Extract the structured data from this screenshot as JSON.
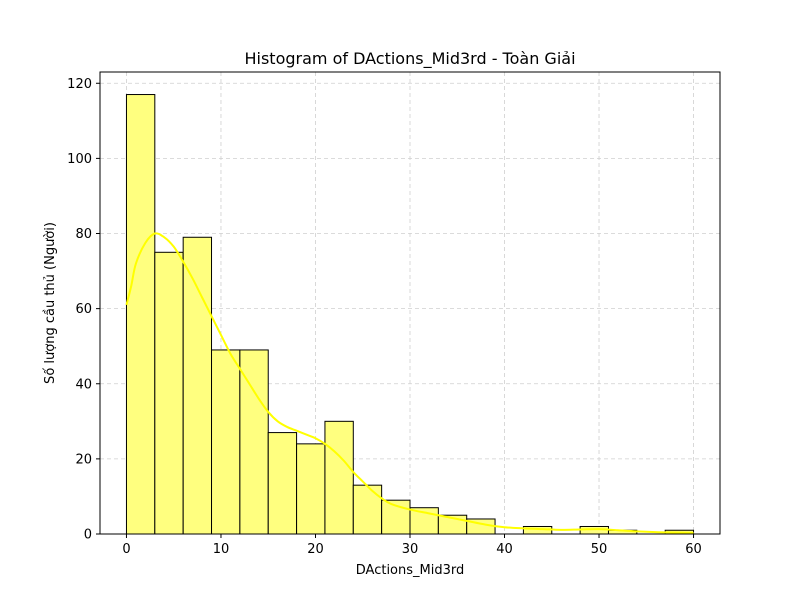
{
  "chart_data": {
    "type": "bar",
    "subtype": "histogram",
    "title": "Histogram of DActions_Mid3rd - Toàn Giải",
    "xlabel": "DActions_Mid3rd",
    "ylabel": "Số lượng cầu thủ (Người)",
    "xlim": [
      -2.8,
      62.8
    ],
    "ylim": [
      0,
      123
    ],
    "xticks": [
      0,
      10,
      20,
      30,
      40,
      50,
      60
    ],
    "yticks": [
      0,
      20,
      40,
      60,
      80,
      100,
      120
    ],
    "grid": true,
    "bar_color": "#ffff7f",
    "edge_color": "#000000",
    "kde_color": "#ffff00",
    "bins": [
      {
        "x0": 0,
        "x1": 3,
        "count": 117
      },
      {
        "x0": 3,
        "x1": 6,
        "count": 75
      },
      {
        "x0": 6,
        "x1": 9,
        "count": 79
      },
      {
        "x0": 9,
        "x1": 12,
        "count": 49
      },
      {
        "x0": 12,
        "x1": 15,
        "count": 49
      },
      {
        "x0": 15,
        "x1": 18,
        "count": 27
      },
      {
        "x0": 18,
        "x1": 21,
        "count": 24
      },
      {
        "x0": 21,
        "x1": 24,
        "count": 30
      },
      {
        "x0": 24,
        "x1": 27,
        "count": 13
      },
      {
        "x0": 27,
        "x1": 30,
        "count": 9
      },
      {
        "x0": 30,
        "x1": 33,
        "count": 7
      },
      {
        "x0": 33,
        "x1": 36,
        "count": 5
      },
      {
        "x0": 36,
        "x1": 39,
        "count": 4
      },
      {
        "x0": 39,
        "x1": 42,
        "count": 0
      },
      {
        "x0": 42,
        "x1": 45,
        "count": 2
      },
      {
        "x0": 45,
        "x1": 48,
        "count": 0
      },
      {
        "x0": 48,
        "x1": 51,
        "count": 2
      },
      {
        "x0": 51,
        "x1": 54,
        "count": 1
      },
      {
        "x0": 54,
        "x1": 57,
        "count": 0
      },
      {
        "x0": 57,
        "x1": 60,
        "count": 1
      }
    ],
    "kde": [
      {
        "x": 0,
        "y": 61
      },
      {
        "x": 0.5,
        "y": 66
      },
      {
        "x": 1,
        "y": 72
      },
      {
        "x": 2,
        "y": 77.5
      },
      {
        "x": 3,
        "y": 80
      },
      {
        "x": 4,
        "y": 79
      },
      {
        "x": 5,
        "y": 76.5
      },
      {
        "x": 6,
        "y": 72.5
      },
      {
        "x": 7,
        "y": 68
      },
      {
        "x": 8,
        "y": 63
      },
      {
        "x": 9,
        "y": 58
      },
      {
        "x": 10,
        "y": 53
      },
      {
        "x": 11,
        "y": 48
      },
      {
        "x": 12,
        "y": 44
      },
      {
        "x": 13,
        "y": 40
      },
      {
        "x": 14,
        "y": 36
      },
      {
        "x": 15,
        "y": 32.5
      },
      {
        "x": 16,
        "y": 30
      },
      {
        "x": 17,
        "y": 28.5
      },
      {
        "x": 18,
        "y": 27.5
      },
      {
        "x": 19,
        "y": 26.5
      },
      {
        "x": 20,
        "y": 25.5
      },
      {
        "x": 21,
        "y": 24
      },
      {
        "x": 22,
        "y": 22
      },
      {
        "x": 23,
        "y": 19.5
      },
      {
        "x": 24,
        "y": 16.5
      },
      {
        "x": 25,
        "y": 14
      },
      {
        "x": 26,
        "y": 11.5
      },
      {
        "x": 27,
        "y": 9.5
      },
      {
        "x": 28,
        "y": 8
      },
      {
        "x": 30,
        "y": 6.5
      },
      {
        "x": 32,
        "y": 5.5
      },
      {
        "x": 34,
        "y": 4.5
      },
      {
        "x": 36,
        "y": 3.5
      },
      {
        "x": 38,
        "y": 2.5
      },
      {
        "x": 40,
        "y": 1.8
      },
      {
        "x": 42,
        "y": 1.5
      },
      {
        "x": 44,
        "y": 1.3
      },
      {
        "x": 46,
        "y": 1.1
      },
      {
        "x": 48,
        "y": 1.2
      },
      {
        "x": 50,
        "y": 1.3
      },
      {
        "x": 52,
        "y": 1.0
      },
      {
        "x": 54,
        "y": 0.7
      },
      {
        "x": 56,
        "y": 0.5
      },
      {
        "x": 58,
        "y": 0.4
      },
      {
        "x": 60,
        "y": 0.3
      }
    ]
  }
}
